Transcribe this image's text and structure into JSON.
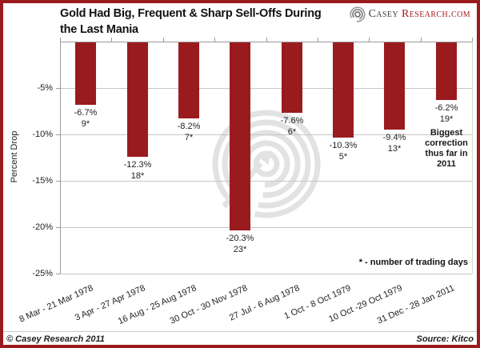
{
  "header": {
    "title_line1": "Gold Had Big, Frequent & Sharp Sell-Offs During",
    "title_line2": "the Last Mania",
    "logo": {
      "brand_primary": "Casey",
      "brand_secondary": "Research.com"
    }
  },
  "chart_data": {
    "type": "bar",
    "title": "Gold Had Big, Frequent & Sharp Sell-Offs During the Last Mania",
    "xlabel": "",
    "ylabel": "Percent Drop",
    "ylim": [
      -25,
      0
    ],
    "ytick_labels": [
      "-5%",
      "-10%",
      "-15%",
      "-20%",
      "-25%"
    ],
    "grid": true,
    "legend": false,
    "categories": [
      "8 Mar - 21 Mar 1978",
      "3 Apr - 27 Apr 1978",
      "16 Aug - 25 Aug 1978",
      "30 Oct - 30 Nov 1978",
      "27 Jul - 6 Aug 1978",
      "1 Oct - 8 Oct 1979",
      "10 Oct -29 Oct 1979",
      "31 Dec - 28 Jan 2011"
    ],
    "values": [
      -6.7,
      -12.3,
      -8.2,
      -20.3,
      -7.6,
      -10.3,
      -9.4,
      -6.2
    ],
    "value_labels": [
      "-6.7%",
      "-12.3%",
      "-8.2%",
      "-20.3%",
      "-7.6%",
      "-10.3%",
      "-9.4%",
      "-6.2%"
    ],
    "trading_days": [
      9,
      18,
      7,
      23,
      6,
      5,
      13,
      19
    ],
    "trading_days_labels": [
      "9*",
      "18*",
      "7*",
      "23*",
      "6*",
      "5*",
      "13*",
      "19*"
    ],
    "annotation_lines": [
      "Biggest",
      "correction",
      "thus far in",
      "2011"
    ],
    "annotation_category_index": 7,
    "note": "* - number of trading days",
    "bar_color": "#9a1b1e"
  },
  "footer": {
    "copyright": "© Casey Research 2011",
    "source": "Source: Kitco"
  },
  "colors": {
    "accent_red": "#9a1b1e",
    "grid_gray": "#c6c6c6",
    "axis_gray": "#9b9b9b",
    "watermark_gray": "#e2e2e2"
  }
}
